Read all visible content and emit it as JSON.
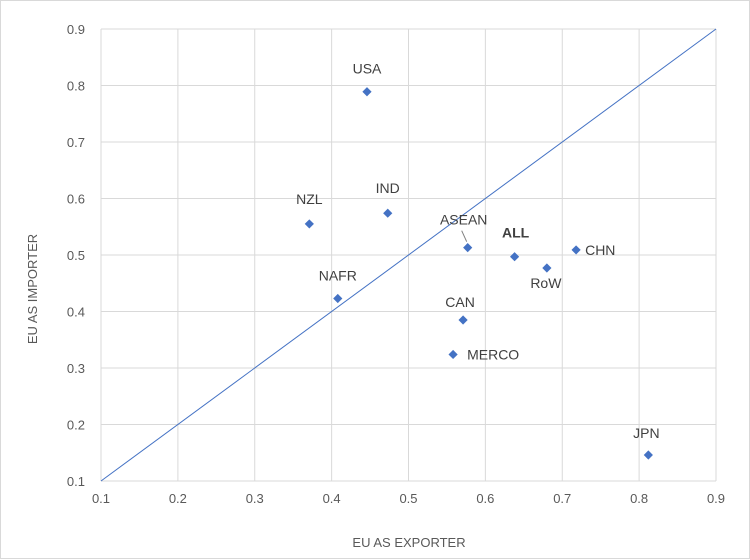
{
  "chart_data": {
    "type": "scatter",
    "title": "",
    "xlabel": "EU AS EXPORTER",
    "ylabel": "EU AS IMPORTER",
    "xlim": [
      0.1,
      0.9
    ],
    "ylim": [
      0.1,
      0.9
    ],
    "x_ticks": [
      "0.1",
      "0.2",
      "0.3",
      "0.4",
      "0.5",
      "0.6",
      "0.7",
      "0.8",
      "0.9"
    ],
    "y_ticks": [
      "0.1",
      "0.2",
      "0.3",
      "0.4",
      "0.5",
      "0.6",
      "0.7",
      "0.8",
      "0.9"
    ],
    "grid": true,
    "reference_line": {
      "from": [
        0.1,
        0.1
      ],
      "to": [
        0.9,
        0.9
      ]
    },
    "marker_color": "#4472c4",
    "line_color": "#4472c4",
    "points": [
      {
        "label": "USA",
        "x": 0.446,
        "y": 0.789
      },
      {
        "label": "IND",
        "x": 0.473,
        "y": 0.574
      },
      {
        "label": "NZL",
        "x": 0.371,
        "y": 0.555
      },
      {
        "label": "ASEAN",
        "x": 0.577,
        "y": 0.513
      },
      {
        "label": "ALL",
        "x": 0.638,
        "y": 0.497,
        "bold": true
      },
      {
        "label": "CHN",
        "x": 0.718,
        "y": 0.509
      },
      {
        "label": "RoW",
        "x": 0.68,
        "y": 0.477
      },
      {
        "label": "NAFR",
        "x": 0.408,
        "y": 0.423
      },
      {
        "label": "CAN",
        "x": 0.571,
        "y": 0.385
      },
      {
        "label": "MERCO",
        "x": 0.558,
        "y": 0.324
      },
      {
        "label": "JPN",
        "x": 0.812,
        "y": 0.146
      }
    ]
  }
}
